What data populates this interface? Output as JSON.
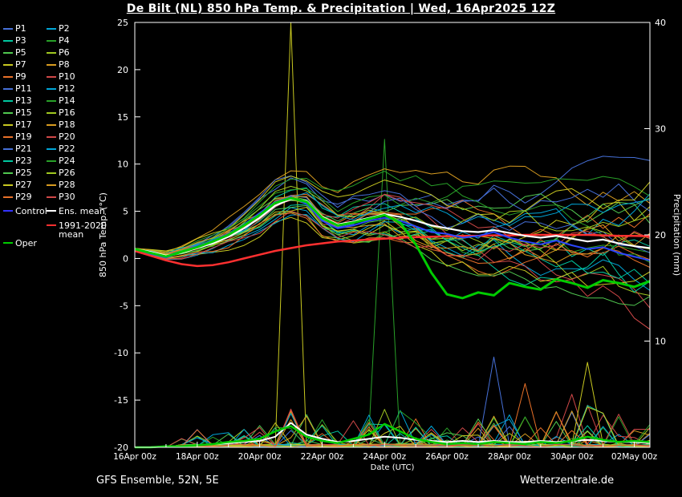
{
  "title": "De Bilt  (NL)  850 hPa Temp. & Precipitation | Wed, 16Apr2025 12Z",
  "footer": {
    "left": "GFS Ensemble, 52N, 5E",
    "right": "Wetterzentrale.de"
  },
  "legend": {
    "members": [
      {
        "label": "P1",
        "color": "#4670d8"
      },
      {
        "label": "P2",
        "color": "#00a6d8"
      },
      {
        "label": "P3",
        "color": "#00c8a0"
      },
      {
        "label": "P4",
        "color": "#28a028"
      },
      {
        "label": "P5",
        "color": "#50c850"
      },
      {
        "label": "P6",
        "color": "#a0c820"
      },
      {
        "label": "P7",
        "color": "#c8c820"
      },
      {
        "label": "P8",
        "color": "#d89c20"
      },
      {
        "label": "P9",
        "color": "#e87028"
      },
      {
        "label": "P10",
        "color": "#d04848"
      },
      {
        "label": "P11",
        "color": "#4670d8"
      },
      {
        "label": "P12",
        "color": "#00a6d8"
      },
      {
        "label": "P13",
        "color": "#00c8a0"
      },
      {
        "label": "P14",
        "color": "#28a028"
      },
      {
        "label": "P15",
        "color": "#50c850"
      },
      {
        "label": "P16",
        "color": "#a0c820"
      },
      {
        "label": "P17",
        "color": "#c8c820"
      },
      {
        "label": "P18",
        "color": "#d89c20"
      },
      {
        "label": "P19",
        "color": "#e87028"
      },
      {
        "label": "P20",
        "color": "#d04848"
      },
      {
        "label": "P21",
        "color": "#4670d8"
      },
      {
        "label": "P22",
        "color": "#00a6d8"
      },
      {
        "label": "P23",
        "color": "#00c8a0"
      },
      {
        "label": "P24",
        "color": "#28a028"
      },
      {
        "label": "P25",
        "color": "#50c850"
      },
      {
        "label": "P26",
        "color": "#a0c820"
      },
      {
        "label": "P27",
        "color": "#c8c820"
      },
      {
        "label": "P28",
        "color": "#d89c20"
      },
      {
        "label": "P29",
        "color": "#e87028"
      },
      {
        "label": "P30",
        "color": "#d04848"
      }
    ],
    "special": [
      {
        "label": "Control",
        "color": "#3333ff"
      },
      {
        "label": "Ens. mean",
        "color": "#ffffff"
      },
      {
        "label": "1991-2020 mean",
        "color": "#ff3030"
      },
      {
        "label": "Oper",
        "color": "#00cc00"
      }
    ]
  },
  "chart_data": {
    "type": "line",
    "title": "De Bilt  (NL)  850 hPa Temp. & Precipitation | Wed, 16Apr2025 12Z",
    "xlabel": "Date (UTC)",
    "x_ticks": [
      "16Apr 00z",
      "18Apr 00z",
      "20Apr 00z",
      "22Apr 00z",
      "24Apr 00z",
      "26Apr 00z",
      "28Apr 00z",
      "30Apr 00z",
      "02May 00z"
    ],
    "x_tick_days": [
      0,
      2,
      4,
      6,
      8,
      10,
      12,
      14,
      16
    ],
    "x_range_days": [
      0,
      16.5
    ],
    "left_axis": {
      "label": "850 hPa Temp. (°C)",
      "range": [
        -20,
        25
      ],
      "ticks": [
        25,
        20,
        15,
        10,
        5,
        0,
        -5,
        -10,
        -15,
        -20
      ]
    },
    "right_axis": {
      "label": "Precipitation (mm)",
      "range": [
        0,
        40
      ],
      "ticks": [
        40,
        30,
        20,
        10
      ]
    },
    "x": [
      0,
      0.5,
      1,
      1.5,
      2,
      2.5,
      3,
      3.5,
      4,
      4.5,
      5,
      5.5,
      6,
      6.5,
      7,
      7.5,
      8,
      8.5,
      9,
      9.5,
      10,
      10.5,
      11,
      11.5,
      12,
      12.5,
      13,
      13.5,
      14,
      14.5,
      15,
      15.5,
      16,
      16.5
    ],
    "series": [
      {
        "name": "1991-2020 mean",
        "color": "#ff3030",
        "width": 2.5,
        "values": [
          0.8,
          0.3,
          -0.2,
          -0.6,
          -0.8,
          -0.7,
          -0.4,
          0.0,
          0.4,
          0.8,
          1.1,
          1.4,
          1.6,
          1.8,
          1.9,
          2.0,
          2.1,
          2.2,
          2.25,
          2.3,
          2.35,
          2.4,
          2.4,
          2.45,
          2.45,
          2.5,
          2.5,
          2.5,
          2.5,
          2.5,
          2.45,
          2.4,
          2.4,
          2.35
        ]
      },
      {
        "name": "Control",
        "color": "#2a46ff",
        "width": 2,
        "values": [
          1.0,
          0.5,
          0.1,
          0.7,
          1.3,
          1.9,
          2.6,
          3.6,
          4.8,
          6.0,
          6.5,
          5.8,
          4.0,
          3.2,
          3.5,
          4.0,
          4.3,
          4.0,
          3.4,
          2.8,
          2.6,
          2.2,
          2.4,
          2.8,
          2.2,
          1.8,
          1.5,
          1.9,
          1.4,
          1.0,
          1.2,
          0.6,
          0.2,
          -0.2
        ]
      },
      {
        "name": "Ens. mean",
        "color": "#ffffff",
        "width": 2.2,
        "values": [
          1.0,
          0.7,
          0.3,
          0.6,
          1.1,
          1.6,
          2.3,
          3.2,
          4.3,
          5.6,
          6.3,
          6.1,
          4.4,
          3.6,
          3.9,
          4.3,
          4.7,
          4.4,
          4.0,
          3.5,
          3.2,
          2.9,
          2.8,
          3.0,
          2.7,
          2.4,
          2.2,
          2.4,
          2.1,
          1.8,
          2.0,
          1.6,
          1.3,
          1.1
        ]
      },
      {
        "name": "Oper",
        "color": "#00cc00",
        "width": 3,
        "values": [
          1.0,
          0.6,
          0.2,
          0.7,
          1.2,
          1.8,
          2.5,
          3.5,
          4.6,
          5.9,
          6.4,
          6.0,
          4.3,
          3.5,
          3.8,
          4.2,
          4.6,
          3.8,
          1.5,
          -1.5,
          -3.8,
          -4.2,
          -3.6,
          -3.9,
          -2.6,
          -3.0,
          -3.3,
          -2.2,
          -2.6,
          -3.1,
          -2.3,
          -2.6,
          -3.0,
          -2.4
        ]
      }
    ],
    "precip_series": [
      {
        "name": "Ens. mean precip",
        "color": "#ffffff",
        "width": 2,
        "values": [
          0,
          0,
          0.1,
          0.1,
          0.2,
          0.3,
          0.4,
          0.5,
          0.6,
          1.0,
          2.3,
          1.2,
          0.8,
          0.5,
          0.6,
          0.8,
          1.0,
          0.9,
          0.7,
          0.6,
          0.5,
          0.6,
          0.5,
          0.6,
          0.5,
          0.5,
          0.6,
          0.5,
          0.6,
          0.7,
          0.6,
          0.5,
          0.5,
          0.4
        ]
      },
      {
        "name": "Oper precip",
        "color": "#00cc00",
        "width": 2.5,
        "values": [
          0,
          0,
          0.1,
          0.1,
          0.2,
          0.3,
          0.5,
          0.6,
          0.8,
          1.5,
          2.0,
          1.0,
          0.6,
          0.4,
          0.8,
          1.2,
          2.2,
          1.5,
          0.8,
          0.5,
          0.3,
          0.4,
          0.3,
          0.5,
          0.4,
          0.3,
          0.5,
          0.4,
          0.6,
          1.0,
          0.7,
          0.5,
          0.6,
          0.5
        ]
      }
    ],
    "ensemble": {
      "member_count": 30,
      "spread_start_degC": 0.35,
      "spread_per_day_degC": 0.42,
      "precip_events": [
        {
          "member": "P7",
          "t": 5.0,
          "mm": 40
        },
        {
          "member": "P4",
          "t": 8.0,
          "mm": 29
        },
        {
          "member": "P21",
          "t": 11.5,
          "mm": 8.5
        },
        {
          "member": "P17",
          "t": 14.5,
          "mm": 8
        },
        {
          "member": "P9",
          "t": 12.5,
          "mm": 6
        },
        {
          "member": "P10",
          "t": 14.0,
          "mm": 5
        }
      ]
    }
  }
}
